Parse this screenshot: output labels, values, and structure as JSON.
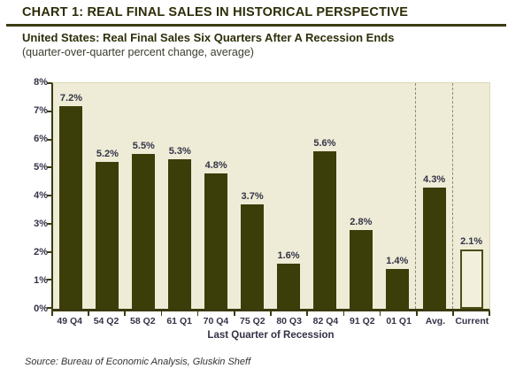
{
  "header": {
    "title": "CHART 1: REAL FINAL SALES IN HISTORICAL PERSPECTIVE",
    "subtitle": "United States: Real Final Sales Six Quarters After A Recession Ends",
    "note": "(quarter-over-quarter percent change, average)"
  },
  "chart_data": {
    "type": "bar",
    "title": "United States: Real Final Sales Six Quarters After A Recession Ends",
    "subtitle": "(quarter-over-quarter percent change, average)",
    "categories": [
      "49 Q4",
      "54 Q2",
      "58 Q2",
      "61 Q1",
      "70 Q4",
      "75 Q2",
      "80 Q3",
      "82 Q4",
      "91 Q2",
      "01 Q1",
      "Avg.",
      "Current"
    ],
    "values": [
      7.2,
      5.2,
      5.5,
      5.3,
      4.8,
      3.7,
      1.6,
      5.6,
      2.8,
      1.4,
      4.3,
      2.1
    ],
    "value_labels": [
      "7.2%",
      "5.2%",
      "5.5%",
      "5.3%",
      "4.8%",
      "3.7%",
      "1.6%",
      "5.6%",
      "2.8%",
      "1.4%",
      "4.3%",
      "2.1%"
    ],
    "xlabel": "Last Quarter of Recession",
    "ylabel": "",
    "ylim": [
      0,
      8
    ],
    "ytick_labels": [
      "8%",
      "7%",
      "6%",
      "5%",
      "4%",
      "3%",
      "2%",
      "1%",
      "0%"
    ],
    "grid": false,
    "legend_position": "none",
    "outlined_category": "Current",
    "dashed_flank_category": "Avg.",
    "colors": {
      "bar": "#3b3e08",
      "plot_background": "#eeecd6",
      "outlined_bar_fill": "#f2f0dc",
      "outlined_bar_border": "#4b4e16",
      "label_text": "#333347",
      "title_text": "#2d2d08",
      "rule": "#3c3c14",
      "dashed_line": "#8a8a70"
    }
  },
  "footer": {
    "source": "Source: Bureau of Economic Analysis, Gluskin Sheff"
  }
}
